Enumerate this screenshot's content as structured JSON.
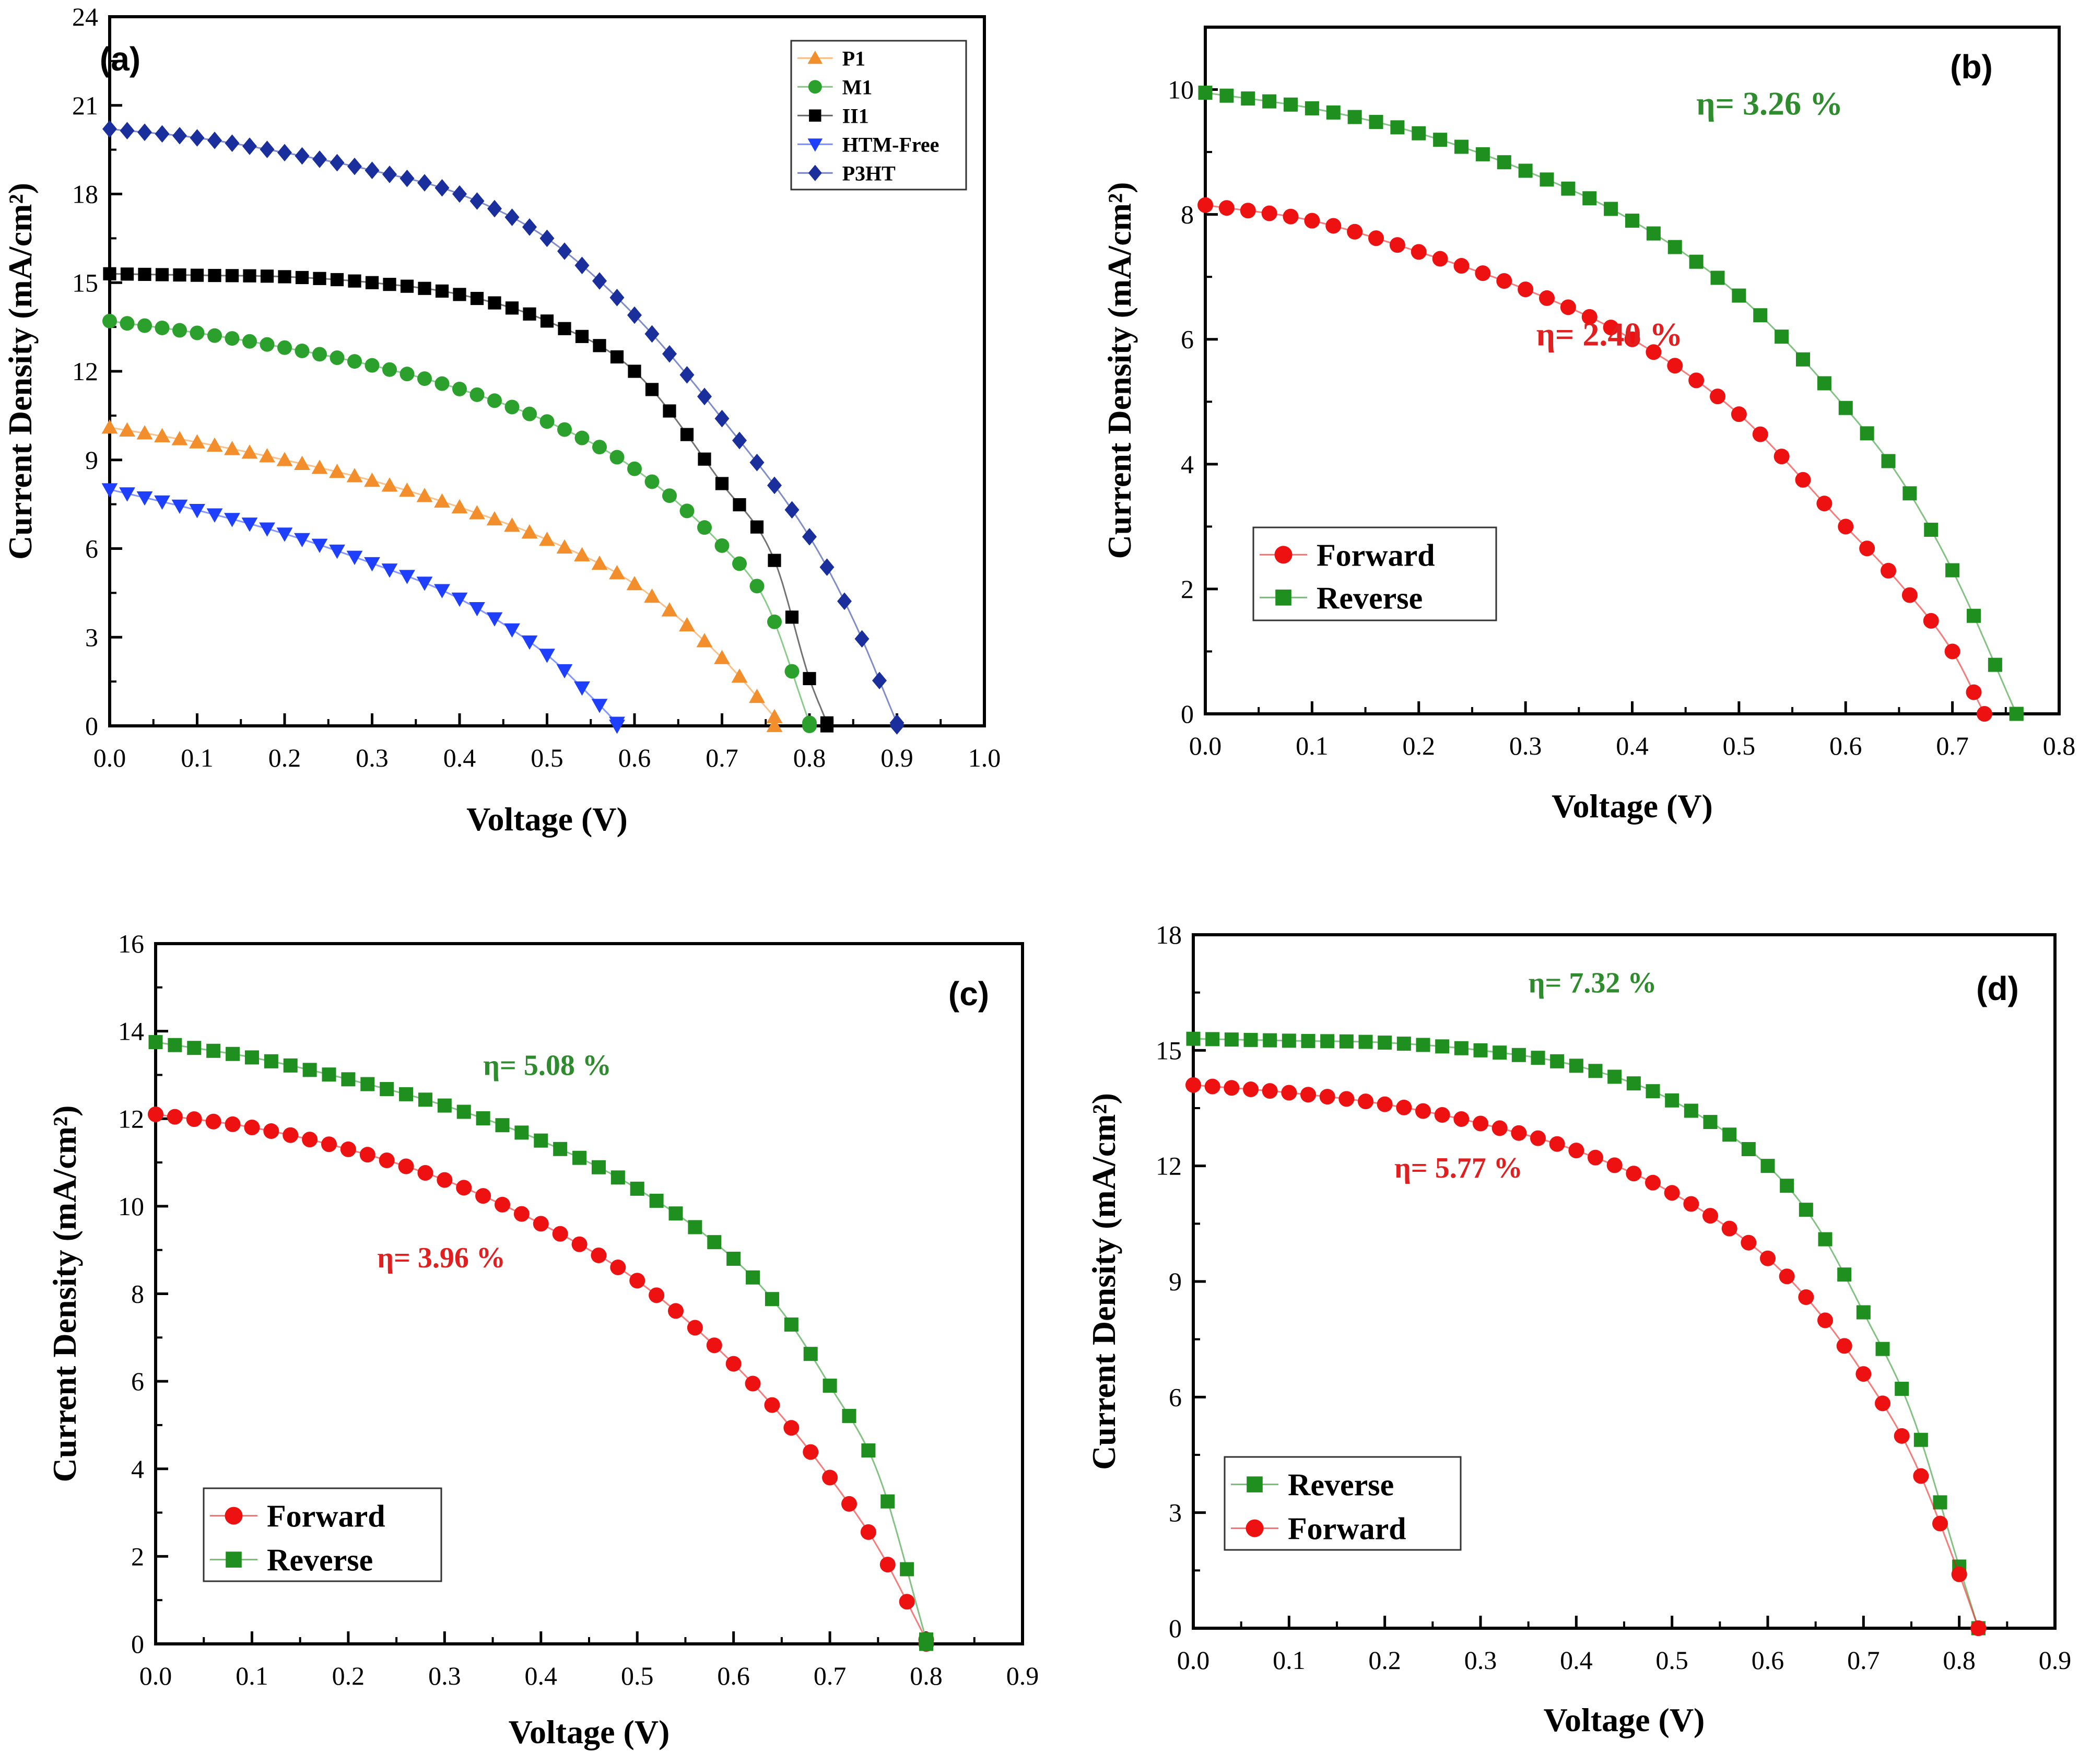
{
  "chart_data": [
    {
      "type": "line",
      "panel": "(a)",
      "xlabel": "Voltage (V)",
      "ylabel": "Current Density (mA/cm²)",
      "xlim": [
        0.0,
        1.0
      ],
      "ylim": [
        0,
        24
      ],
      "xticks": [
        "0.0",
        "0.1",
        "0.2",
        "0.3",
        "0.4",
        "0.5",
        "0.6",
        "0.7",
        "0.8",
        "0.9",
        "1.0"
      ],
      "yticks": [
        "0",
        "3",
        "6",
        "9",
        "12",
        "15",
        "18",
        "21",
        "24"
      ],
      "legend_position": "top-right",
      "annotations": [],
      "series": [
        {
          "name": "P1",
          "color": "#f28e2b",
          "marker": "triangle-up",
          "voc": 0.76,
          "x": [
            0.0,
            0.1,
            0.2,
            0.3,
            0.4,
            0.5,
            0.6,
            0.7,
            0.76
          ],
          "y": [
            10.1,
            9.6,
            9.0,
            8.3,
            7.4,
            6.3,
            4.8,
            2.3,
            0.3
          ]
        },
        {
          "name": "M1",
          "color": "#2ca02c",
          "marker": "circle",
          "voc": 0.8,
          "x": [
            0.0,
            0.1,
            0.2,
            0.3,
            0.4,
            0.5,
            0.6,
            0.7,
            0.75,
            0.8
          ],
          "y": [
            13.7,
            13.3,
            12.8,
            12.2,
            11.4,
            10.3,
            8.7,
            6.1,
            4.2,
            0.1
          ]
        },
        {
          "name": "II1",
          "color": "#000000",
          "marker": "square",
          "voc": 0.82,
          "x": [
            0.0,
            0.1,
            0.2,
            0.3,
            0.4,
            0.5,
            0.6,
            0.7,
            0.76,
            0.8,
            0.82
          ],
          "y": [
            15.3,
            15.25,
            15.2,
            15.0,
            14.6,
            13.7,
            12.0,
            8.2,
            5.6,
            1.6,
            0.1
          ]
        },
        {
          "name": "HTM-Free",
          "color": "#1f3fff",
          "marker": "triangle-down",
          "voc": 0.58,
          "x": [
            0.0,
            0.1,
            0.2,
            0.3,
            0.4,
            0.5,
            0.55,
            0.58
          ],
          "y": [
            8.0,
            7.3,
            6.5,
            5.5,
            4.3,
            2.4,
            1.0,
            0.1
          ]
        },
        {
          "name": "P3HT",
          "color": "#1a2f9c",
          "marker": "diamond",
          "voc": 0.9,
          "x": [
            0.0,
            0.1,
            0.2,
            0.3,
            0.4,
            0.5,
            0.6,
            0.7,
            0.8,
            0.85,
            0.9
          ],
          "y": [
            20.2,
            19.9,
            19.4,
            18.8,
            18.0,
            16.5,
            13.9,
            10.4,
            6.4,
            3.6,
            0.1
          ]
        }
      ]
    },
    {
      "type": "line",
      "panel": "(b)",
      "xlabel": "Voltage (V)",
      "ylabel": "Current Density (mA/cm²)",
      "xlim": [
        0.0,
        0.8
      ],
      "ylim": [
        0,
        11
      ],
      "xticks": [
        "0.0",
        "0.1",
        "0.2",
        "0.3",
        "0.4",
        "0.5",
        "0.6",
        "0.7",
        "0.8"
      ],
      "yticks": [
        "0",
        "2",
        "4",
        "6",
        "8",
        "10"
      ],
      "legend_position": "bottom-left",
      "annotations": [
        {
          "text": "η= 3.26 %",
          "color": "#2e8b2e",
          "x": 0.46,
          "y": 9.6
        },
        {
          "text": "η= 2.40 %",
          "color": "#e02020",
          "x": 0.31,
          "y": 5.9
        }
      ],
      "series": [
        {
          "name": "Forward",
          "color": "#ee1111",
          "marker": "circle",
          "voc": 0.73,
          "x": [
            0.0,
            0.1,
            0.2,
            0.3,
            0.4,
            0.5,
            0.6,
            0.65,
            0.7,
            0.73
          ],
          "y": [
            8.15,
            7.9,
            7.4,
            6.8,
            6.0,
            4.8,
            3.0,
            2.1,
            1.0,
            0.0
          ]
        },
        {
          "name": "Reverse",
          "color": "#1f8f1f",
          "marker": "square",
          "voc": 0.76,
          "x": [
            0.0,
            0.1,
            0.2,
            0.3,
            0.4,
            0.5,
            0.6,
            0.65,
            0.7,
            0.76
          ],
          "y": [
            9.95,
            9.7,
            9.3,
            8.7,
            7.9,
            6.7,
            4.9,
            3.8,
            2.3,
            0.0
          ]
        }
      ]
    },
    {
      "type": "line",
      "panel": "(c)",
      "xlabel": "Voltage (V)",
      "ylabel": "Current Density (mA/cm²)",
      "xlim": [
        0.0,
        0.9
      ],
      "ylim": [
        0,
        16
      ],
      "xticks": [
        "0.0",
        "0.1",
        "0.2",
        "0.3",
        "0.4",
        "0.5",
        "0.6",
        "0.7",
        "0.8",
        "0.9"
      ],
      "yticks": [
        "0",
        "2",
        "4",
        "6",
        "8",
        "10",
        "12",
        "14",
        "16"
      ],
      "legend_position": "bottom-left",
      "annotations": [
        {
          "text": "η= 5.08 %",
          "color": "#2e8b2e",
          "x": 0.34,
          "y": 13.0
        },
        {
          "text": "η= 3.96 %",
          "color": "#e02020",
          "x": 0.23,
          "y": 8.6
        }
      ],
      "series": [
        {
          "name": "Forward",
          "color": "#ee1111",
          "marker": "circle",
          "voc": 0.8,
          "x": [
            0.0,
            0.1,
            0.2,
            0.3,
            0.4,
            0.5,
            0.6,
            0.65,
            0.7,
            0.75,
            0.8
          ],
          "y": [
            12.1,
            11.8,
            11.3,
            10.6,
            9.6,
            8.3,
            6.4,
            5.2,
            3.8,
            2.2,
            0.1
          ]
        },
        {
          "name": "Reverse",
          "color": "#1f8f1f",
          "marker": "square",
          "voc": 0.8,
          "x": [
            0.0,
            0.1,
            0.2,
            0.3,
            0.4,
            0.5,
            0.6,
            0.65,
            0.7,
            0.75,
            0.8
          ],
          "y": [
            13.75,
            13.4,
            12.9,
            12.3,
            11.5,
            10.4,
            8.8,
            7.6,
            5.9,
            3.9,
            0.1
          ]
        }
      ]
    },
    {
      "type": "line",
      "panel": "(d)",
      "xlabel": "Voltage (V)",
      "ylabel": "Current Density (mA/cm²)",
      "xlim": [
        0.0,
        0.9
      ],
      "ylim": [
        0,
        18
      ],
      "xticks": [
        "0.0",
        "0.1",
        "0.2",
        "0.3",
        "0.4",
        "0.5",
        "0.6",
        "0.7",
        "0.8",
        "0.9"
      ],
      "yticks": [
        "0",
        "3",
        "6",
        "9",
        "12",
        "15",
        "18"
      ],
      "legend_position": "bottom-left",
      "annotations": [
        {
          "text": "η= 7.32 %",
          "color": "#2e8b2e",
          "x": 0.35,
          "y": 16.5
        },
        {
          "text": "η= 5.77 %",
          "color": "#e02020",
          "x": 0.21,
          "y": 11.7
        }
      ],
      "series": [
        {
          "name": "Reverse",
          "color": "#1f8f1f",
          "marker": "square",
          "voc": 0.82,
          "x": [
            0.0,
            0.1,
            0.2,
            0.3,
            0.4,
            0.5,
            0.6,
            0.65,
            0.7,
            0.75,
            0.8,
            0.82
          ],
          "y": [
            15.3,
            15.25,
            15.2,
            15.0,
            14.6,
            13.7,
            12.0,
            10.5,
            8.2,
            5.6,
            1.6,
            0.0
          ]
        },
        {
          "name": "Forward",
          "color": "#ee1111",
          "marker": "circle",
          "voc": 0.82,
          "x": [
            0.0,
            0.1,
            0.2,
            0.3,
            0.4,
            0.5,
            0.6,
            0.65,
            0.7,
            0.75,
            0.8,
            0.82
          ],
          "y": [
            14.1,
            13.9,
            13.6,
            13.1,
            12.4,
            11.3,
            9.6,
            8.3,
            6.6,
            4.5,
            1.4,
            0.0
          ]
        }
      ]
    }
  ]
}
